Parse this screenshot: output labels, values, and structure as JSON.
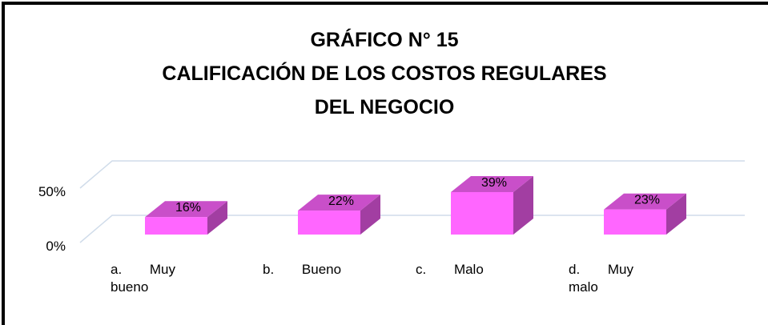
{
  "chart_data": {
    "type": "bar3d",
    "title": [
      "GRÁFICO N° 15",
      "CALIFICACIÓN DE LOS COSTOS REGULARES",
      "DEL NEGOCIO"
    ],
    "categories": [
      "a. Muy bueno",
      "b. Bueno",
      "c. Malo",
      "d. Muy malo"
    ],
    "values": [
      16,
      22,
      39,
      23
    ],
    "value_labels": [
      "16%",
      "22%",
      "39%",
      "23%"
    ],
    "color": "#ff66ff",
    "ylim": [
      0,
      50
    ],
    "yticks": [
      {
        "value": 0,
        "label": "0%"
      },
      {
        "value": 50,
        "label": "50%"
      }
    ],
    "grid": true
  }
}
